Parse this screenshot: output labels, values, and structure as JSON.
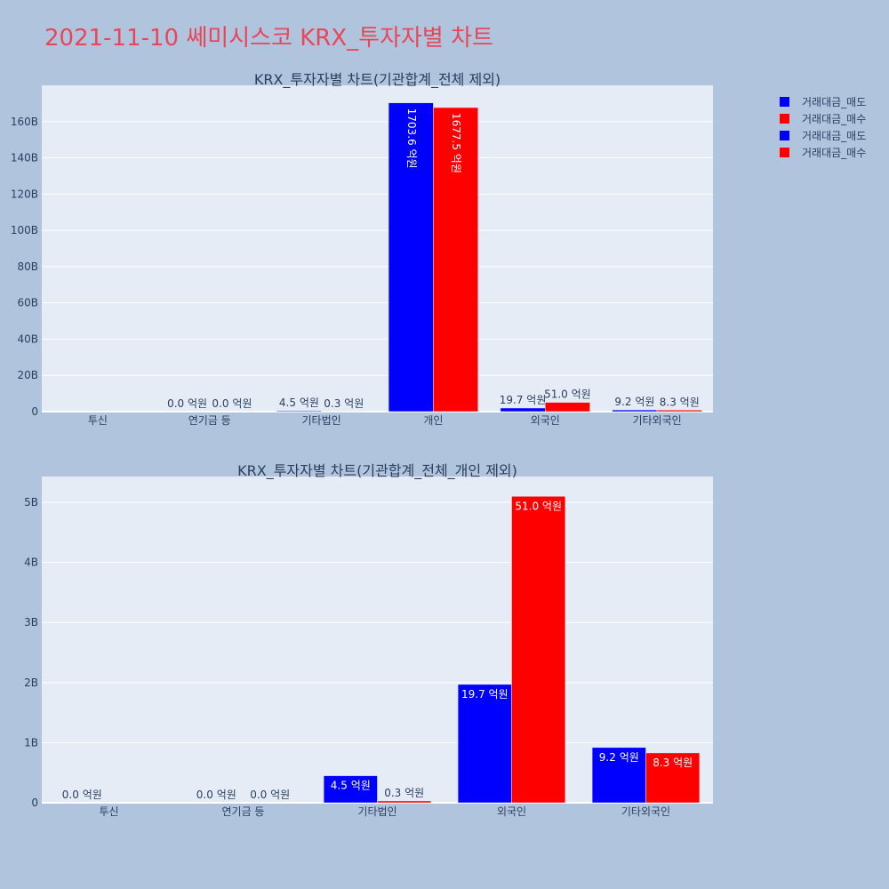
{
  "page": {
    "title": "2021-11-10 쎄미시스코 KRX_투자자별 차트"
  },
  "legend": [
    {
      "label": "거래대금_매도",
      "color": "#0000ff"
    },
    {
      "label": "거래대금_매수",
      "color": "#ff0000"
    },
    {
      "label": "거래대금_매도",
      "color": "#0000ff"
    },
    {
      "label": "거래대금_매수",
      "color": "#ff0000"
    }
  ],
  "chart_data": [
    {
      "type": "bar",
      "title": "KRX_투자자별 차트(기관합계_전체 제외)",
      "categories": [
        "투신",
        "연기금 등",
        "기타법인",
        "개인",
        "외국인",
        "기타외국인"
      ],
      "ylim": [
        0,
        180000000000
      ],
      "yticks": [
        0,
        20000000000,
        40000000000,
        60000000000,
        80000000000,
        100000000000,
        120000000000,
        140000000000,
        160000000000
      ],
      "ytick_labels": [
        "0",
        "20B",
        "40B",
        "60B",
        "80B",
        "100B",
        "120B",
        "140B",
        "160B"
      ],
      "series": [
        {
          "name": "거래대금_매도",
          "color": "#0000ff",
          "values": [
            null,
            0,
            450000000,
            170360000000,
            1970000000,
            920000000
          ],
          "labels": [
            "",
            "0.0 억원",
            "4.5 억원",
            "1703.6 억원",
            "19.7 억원",
            "9.2 억원"
          ]
        },
        {
          "name": "거래대금_매수",
          "color": "#ff0000",
          "values": [
            null,
            0,
            30000000,
            167750000000,
            5100000000,
            830000000
          ],
          "labels": [
            "",
            "0.0 억원",
            "0.3 억원",
            "1677.5 억원",
            "51.0 억원",
            "8.3 억원"
          ]
        }
      ]
    },
    {
      "type": "bar",
      "title": "KRX_투자자별 차트(기관합계_전체_개인 제외)",
      "categories": [
        "투신",
        "연기금 등",
        "기타법인",
        "외국인",
        "기타외국인"
      ],
      "ylim": [
        0,
        5430000000
      ],
      "yticks": [
        0,
        1000000000,
        2000000000,
        3000000000,
        4000000000,
        5000000000
      ],
      "ytick_labels": [
        "0",
        "1B",
        "2B",
        "3B",
        "4B",
        "5B"
      ],
      "series": [
        {
          "name": "거래대금_매도",
          "color": "#0000ff",
          "values": [
            0,
            0,
            450000000,
            1970000000,
            920000000
          ],
          "labels": [
            "0.0 억원",
            "0.0 억원",
            "4.5 억원",
            "19.7 억원",
            "9.2 억원"
          ]
        },
        {
          "name": "거래대금_매수",
          "color": "#ff0000",
          "values": [
            null,
            0,
            30000000,
            5100000000,
            830000000
          ],
          "labels": [
            "",
            "0.0 억원",
            "0.3 억원",
            "51.0 억원",
            "8.3 억원"
          ]
        }
      ]
    }
  ]
}
